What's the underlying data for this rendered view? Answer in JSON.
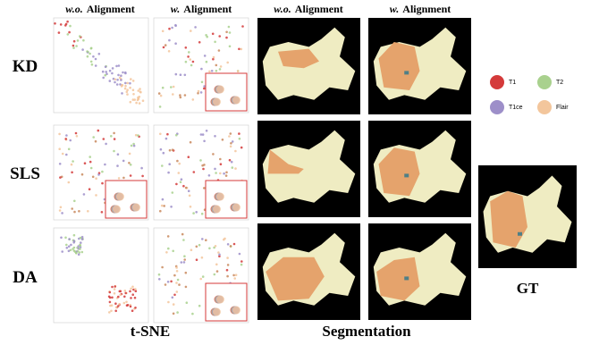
{
  "columns": [
    {
      "prefix": "w.o.",
      "label": "Alignment"
    },
    {
      "prefix": "w.",
      "label": "Alignment"
    },
    {
      "prefix": "w.o.",
      "label": "Alignment"
    },
    {
      "prefix": "w.",
      "label": "Alignment"
    }
  ],
  "rows": [
    "KD",
    "SLS",
    "DA"
  ],
  "legend": [
    "T1",
    "T2",
    "T1ce",
    "Flair"
  ],
  "gt_label": "GT",
  "sections": [
    "t-SNE",
    "Segmentation"
  ]
}
